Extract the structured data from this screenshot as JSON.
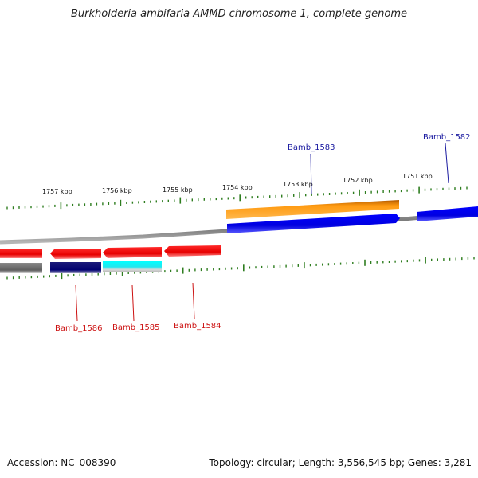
{
  "title": "Burkholderia ambifaria AMMD chromosome 1, complete genome",
  "footer": {
    "accession": "Accession: NC_008390",
    "summary": "Topology: circular; Length: 3,556,545 bp; Genes: 3,281"
  },
  "colors": {
    "backbone": "#7a7a7a",
    "tick": "#2e7d1f",
    "forward_label": "#1a1aa0",
    "reverse_label": "#cc1111"
  },
  "kbp_labels": [
    "1757 kbp",
    "1756 kbp",
    "1755 kbp",
    "1754 kbp",
    "1753 kbp",
    "1752 kbp",
    "1751 kbp"
  ],
  "genes": {
    "forward": [
      {
        "name": "Bamb_1583",
        "color": "orange",
        "labeled": true
      },
      {
        "name": "",
        "color": "blue",
        "labeled": false
      },
      {
        "name": "Bamb_1582",
        "color": "blue",
        "labeled": true
      }
    ],
    "reverse": [
      {
        "name": "",
        "color": "red",
        "labeled": false
      },
      {
        "name": "Bamb_1586",
        "color": "red",
        "labeled": true
      },
      {
        "name": "Bamb_1585",
        "color": "red",
        "labeled": true
      },
      {
        "name": "Bamb_1584",
        "color": "red",
        "labeled": true
      }
    ],
    "reverse_class_bars": [
      {
        "color": "gray"
      },
      {
        "color": "navy"
      },
      {
        "color": "cyan"
      }
    ]
  }
}
